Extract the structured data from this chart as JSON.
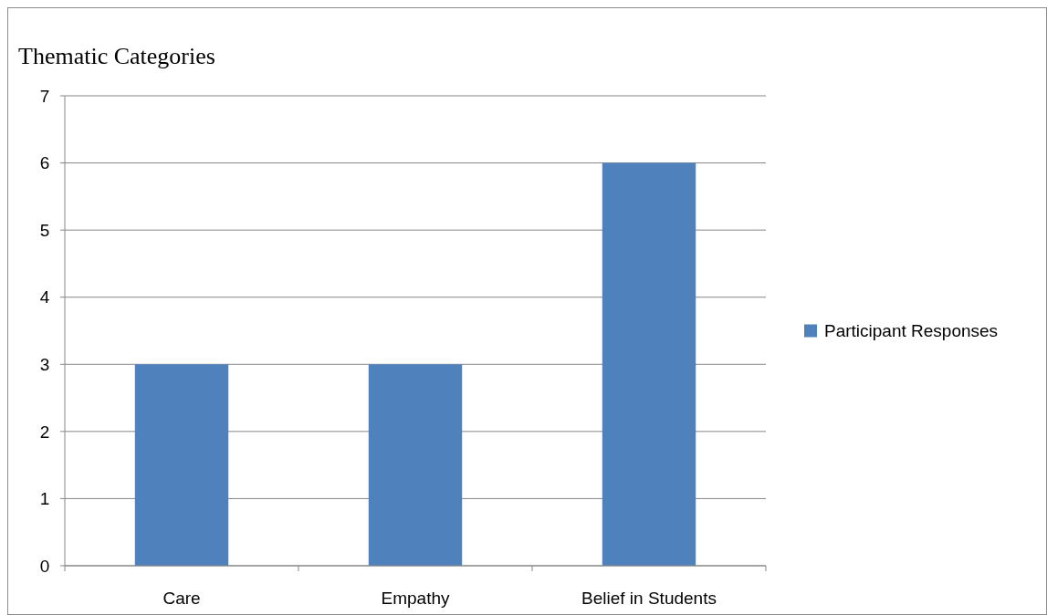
{
  "chart_data": {
    "type": "bar",
    "title": "Thematic Categories",
    "categories": [
      "Care",
      "Empathy",
      "Belief in Students"
    ],
    "series": [
      {
        "name": "Participant Responses",
        "color": "#4f81bd",
        "values": [
          3,
          3,
          6
        ]
      }
    ],
    "ylim": [
      0,
      7
    ],
    "yticks": [
      0,
      1,
      2,
      3,
      4,
      5,
      6,
      7
    ],
    "grid": "y",
    "legend": "right"
  }
}
